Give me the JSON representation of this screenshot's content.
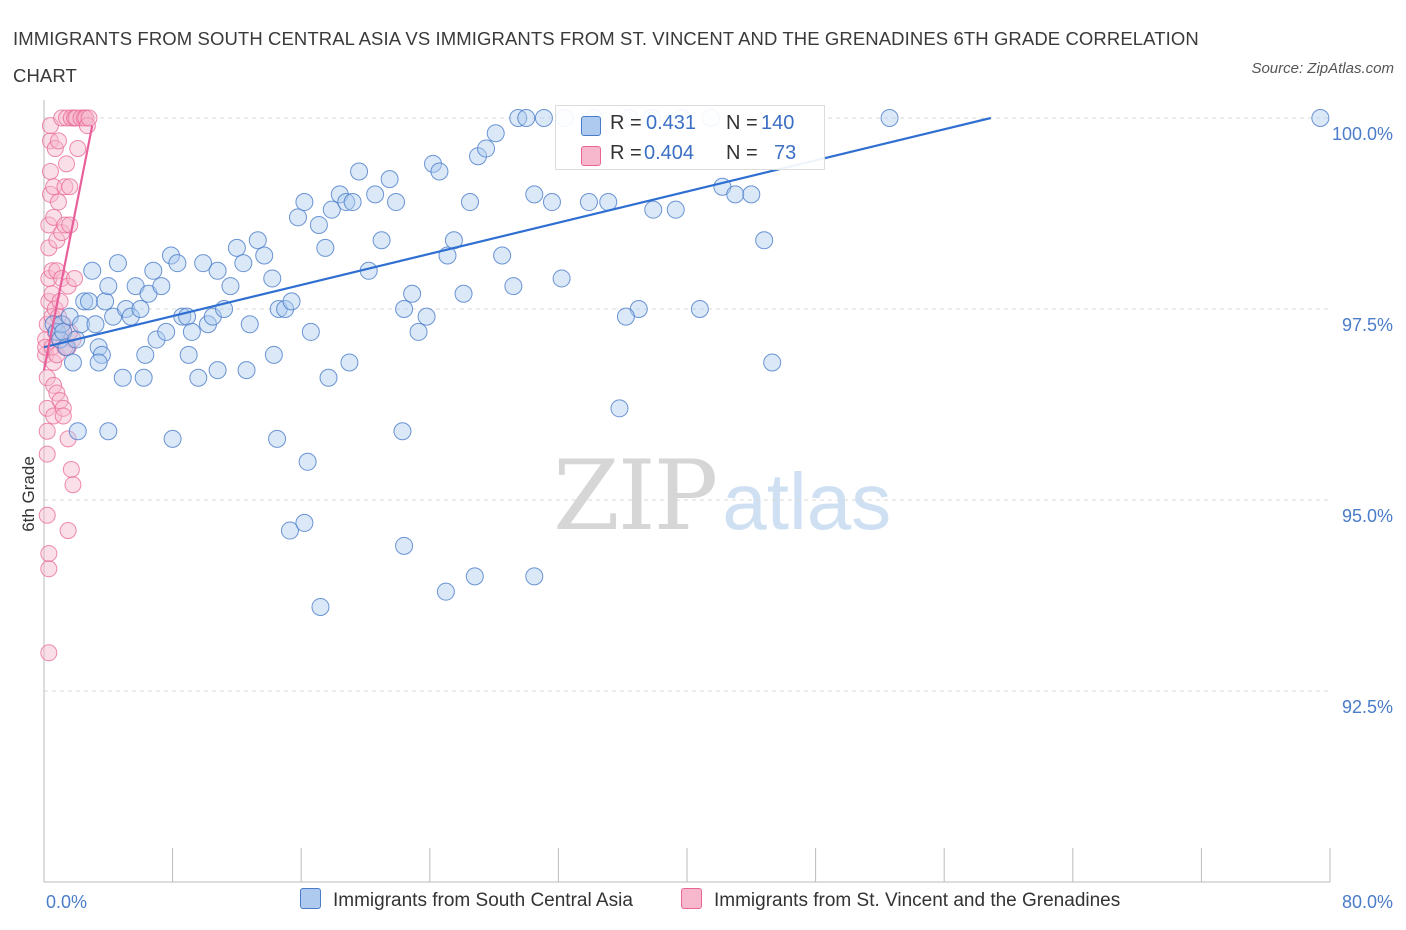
{
  "title": "IMMIGRANTS FROM SOUTH CENTRAL ASIA VS IMMIGRANTS FROM ST. VINCENT AND THE GRENADINES 6TH GRADE CORRELATION CHART",
  "source": "Source: ZipAtlas.com",
  "watermark": {
    "zip": "ZIP",
    "atlas": "atlas"
  },
  "colors": {
    "blue": "#4a7cc9",
    "blue_fill": "#aecbef",
    "blue_line": "#2f6fd1",
    "pink": "#e86596",
    "pink_fill": "#f7b8cd",
    "pink_line": "#e8609a",
    "grid": "#d8d8d8"
  },
  "legend": {
    "rows": [
      {
        "r_label": "R =",
        "r_value": "0.431",
        "n_label": "N =",
        "n_value": "140"
      },
      {
        "r_label": "R =",
        "r_value": "0.404",
        "n_label": "N =",
        "n_value": "73"
      }
    ]
  },
  "bottom_legend": [
    "Immigrants from South Central Asia",
    "Immigrants from St. Vincent and the Grenadines"
  ],
  "chart_data": {
    "type": "scatter",
    "title": "IMMIGRANTS FROM SOUTH CENTRAL ASIA VS IMMIGRANTS FROM ST. VINCENT AND THE GRENADINES 6TH GRADE CORRELATION CHART",
    "xlabel": "",
    "ylabel": "6th Grade",
    "xlim": [
      0,
      80
    ],
    "ylim": [
      90,
      100.25
    ],
    "x_tick_labels": [
      "0.0%",
      "80.0%"
    ],
    "y_tick_labels": [
      "100.0%",
      "97.5%",
      "95.0%",
      "92.5%"
    ],
    "y_ticks": [
      100.0,
      97.5,
      95.0,
      92.5
    ],
    "grid": true,
    "legend_position": "top-center",
    "series": [
      {
        "name": "Immigrants from South Central Asia",
        "color": "#4a7cc9",
        "trend": {
          "x": [
            0.0,
            58.9
          ],
          "y": [
            97.0,
            100.0
          ]
        },
        "points": [
          [
            0.6,
            97.3
          ],
          [
            0.8,
            97.2
          ],
          [
            1.0,
            97.1
          ],
          [
            1.1,
            97.3
          ],
          [
            1.2,
            97.2
          ],
          [
            1.4,
            97.0
          ],
          [
            1.6,
            97.4
          ],
          [
            1.8,
            96.8
          ],
          [
            2.0,
            97.1
          ],
          [
            2.3,
            97.3
          ],
          [
            2.5,
            97.6
          ],
          [
            2.8,
            97.6
          ],
          [
            3.0,
            98.0
          ],
          [
            3.2,
            97.3
          ],
          [
            3.4,
            97.0
          ],
          [
            3.6,
            96.9
          ],
          [
            3.8,
            97.6
          ],
          [
            4.0,
            97.8
          ],
          [
            4.3,
            97.4
          ],
          [
            4.6,
            98.1
          ],
          [
            4.9,
            96.6
          ],
          [
            5.1,
            97.5
          ],
          [
            5.4,
            97.4
          ],
          [
            5.7,
            97.8
          ],
          [
            6.0,
            97.5
          ],
          [
            6.3,
            96.9
          ],
          [
            6.5,
            97.7
          ],
          [
            6.8,
            98.0
          ],
          [
            7.0,
            97.1
          ],
          [
            7.3,
            97.8
          ],
          [
            7.6,
            97.2
          ],
          [
            7.9,
            98.2
          ],
          [
            8.3,
            98.1
          ],
          [
            8.6,
            97.4
          ],
          [
            8.9,
            97.4
          ],
          [
            9.2,
            97.2
          ],
          [
            9.6,
            96.6
          ],
          [
            9.9,
            98.1
          ],
          [
            10.2,
            97.3
          ],
          [
            10.5,
            97.4
          ],
          [
            10.8,
            98.0
          ],
          [
            11.2,
            97.5
          ],
          [
            11.6,
            97.8
          ],
          [
            12.0,
            98.3
          ],
          [
            12.4,
            98.1
          ],
          [
            12.8,
            97.3
          ],
          [
            13.3,
            98.4
          ],
          [
            13.7,
            98.2
          ],
          [
            14.2,
            97.9
          ],
          [
            14.6,
            97.5
          ],
          [
            15.0,
            97.5
          ],
          [
            15.4,
            97.6
          ],
          [
            15.8,
            98.7
          ],
          [
            16.2,
            98.9
          ],
          [
            16.6,
            97.2
          ],
          [
            17.1,
            98.6
          ],
          [
            17.5,
            98.3
          ],
          [
            17.9,
            98.8
          ],
          [
            18.4,
            99.0
          ],
          [
            18.8,
            98.9
          ],
          [
            19.2,
            98.9
          ],
          [
            19.6,
            99.3
          ],
          [
            20.2,
            98.0
          ],
          [
            20.6,
            99.0
          ],
          [
            21.0,
            98.4
          ],
          [
            21.5,
            99.2
          ],
          [
            21.9,
            98.9
          ],
          [
            22.4,
            97.5
          ],
          [
            22.9,
            97.7
          ],
          [
            23.3,
            97.2
          ],
          [
            23.8,
            97.4
          ],
          [
            24.2,
            99.4
          ],
          [
            24.6,
            99.3
          ],
          [
            25.1,
            98.2
          ],
          [
            25.5,
            98.4
          ],
          [
            26.1,
            97.7
          ],
          [
            26.5,
            98.9
          ],
          [
            27.0,
            99.5
          ],
          [
            27.5,
            99.6
          ],
          [
            28.1,
            99.8
          ],
          [
            3.4,
            96.8
          ],
          [
            6.2,
            96.6
          ],
          [
            9.0,
            96.9
          ],
          [
            10.8,
            96.7
          ],
          [
            12.6,
            96.7
          ],
          [
            14.3,
            96.9
          ],
          [
            17.7,
            96.6
          ],
          [
            19.0,
            96.8
          ],
          [
            2.1,
            95.9
          ],
          [
            4.0,
            95.9
          ],
          [
            8.0,
            95.8
          ],
          [
            14.5,
            95.8
          ],
          [
            16.4,
            95.5
          ],
          [
            22.3,
            95.9
          ],
          [
            15.3,
            94.6
          ],
          [
            16.2,
            94.7
          ],
          [
            22.4,
            94.4
          ],
          [
            17.2,
            93.6
          ],
          [
            25.0,
            93.8
          ],
          [
            26.8,
            94.0
          ],
          [
            30.5,
            94.0
          ],
          [
            29.5,
            100.0
          ],
          [
            30.0,
            100.0
          ],
          [
            31.1,
            100.0
          ],
          [
            32.4,
            100.0
          ],
          [
            34.2,
            100.0
          ],
          [
            36.4,
            100.0
          ],
          [
            37.8,
            100.0
          ],
          [
            39.7,
            100.0
          ],
          [
            41.5,
            100.0
          ],
          [
            42.2,
            99.1
          ],
          [
            43.0,
            99.0
          ],
          [
            44.0,
            99.0
          ],
          [
            39.3,
            98.8
          ],
          [
            35.1,
            98.9
          ],
          [
            33.9,
            98.9
          ],
          [
            37.9,
            98.8
          ],
          [
            30.5,
            99.0
          ],
          [
            31.6,
            98.9
          ],
          [
            37.0,
            97.5
          ],
          [
            40.8,
            97.5
          ],
          [
            36.2,
            97.4
          ],
          [
            32.2,
            97.9
          ],
          [
            28.5,
            98.2
          ],
          [
            29.2,
            97.8
          ],
          [
            44.8,
            98.4
          ],
          [
            45.3,
            96.8
          ],
          [
            35.8,
            96.2
          ],
          [
            79.4,
            100.0
          ],
          [
            52.6,
            100.0
          ]
        ]
      },
      {
        "name": "Immigrants from St. Vincent and the Grenadines",
        "color": "#e86596",
        "trend": {
          "x": [
            0.0,
            3.0
          ],
          "y": [
            96.7,
            99.9
          ]
        },
        "points": [
          [
            0.1,
            97.1
          ],
          [
            0.1,
            96.9
          ],
          [
            0.1,
            97.0
          ],
          [
            0.2,
            97.3
          ],
          [
            0.2,
            96.6
          ],
          [
            0.2,
            96.2
          ],
          [
            0.2,
            95.9
          ],
          [
            0.2,
            95.6
          ],
          [
            0.2,
            94.8
          ],
          [
            0.3,
            94.1
          ],
          [
            0.3,
            93.0
          ],
          [
            0.3,
            94.3
          ],
          [
            0.3,
            97.6
          ],
          [
            0.3,
            97.9
          ],
          [
            0.3,
            98.3
          ],
          [
            0.3,
            98.6
          ],
          [
            0.4,
            99.0
          ],
          [
            0.4,
            99.3
          ],
          [
            0.4,
            99.7
          ],
          [
            0.4,
            99.9
          ],
          [
            0.5,
            97.0
          ],
          [
            0.5,
            97.4
          ],
          [
            0.5,
            97.7
          ],
          [
            0.5,
            98.0
          ],
          [
            0.6,
            96.5
          ],
          [
            0.6,
            96.8
          ],
          [
            0.6,
            96.1
          ],
          [
            0.6,
            98.7
          ],
          [
            0.6,
            99.1
          ],
          [
            0.7,
            99.6
          ],
          [
            0.7,
            97.2
          ],
          [
            0.7,
            97.5
          ],
          [
            0.8,
            96.4
          ],
          [
            0.8,
            96.9
          ],
          [
            0.8,
            98.0
          ],
          [
            0.8,
            98.4
          ],
          [
            0.9,
            98.9
          ],
          [
            0.9,
            99.7
          ],
          [
            1.0,
            96.3
          ],
          [
            1.0,
            97.1
          ],
          [
            1.0,
            97.6
          ],
          [
            1.1,
            97.9
          ],
          [
            1.1,
            98.5
          ],
          [
            1.1,
            100.0
          ],
          [
            1.2,
            96.2
          ],
          [
            1.2,
            97.3
          ],
          [
            1.3,
            98.6
          ],
          [
            1.3,
            99.1
          ],
          [
            1.4,
            99.4
          ],
          [
            1.4,
            100.0
          ],
          [
            1.5,
            95.8
          ],
          [
            1.5,
            97.0
          ],
          [
            1.5,
            97.8
          ],
          [
            1.6,
            98.6
          ],
          [
            1.6,
            99.1
          ],
          [
            1.7,
            100.0
          ],
          [
            1.7,
            95.4
          ],
          [
            1.8,
            95.2
          ],
          [
            1.8,
            97.1
          ],
          [
            1.9,
            97.9
          ],
          [
            1.9,
            100.0
          ],
          [
            2.0,
            100.0
          ],
          [
            2.1,
            99.6
          ],
          [
            2.3,
            100.0
          ],
          [
            2.5,
            100.0
          ],
          [
            2.6,
            100.0
          ],
          [
            2.7,
            99.9
          ],
          [
            2.8,
            100.0
          ],
          [
            1.5,
            94.6
          ],
          [
            1.2,
            96.1
          ],
          [
            0.9,
            97.4
          ],
          [
            1.3,
            97.0
          ],
          [
            1.6,
            97.2
          ]
        ]
      }
    ]
  }
}
